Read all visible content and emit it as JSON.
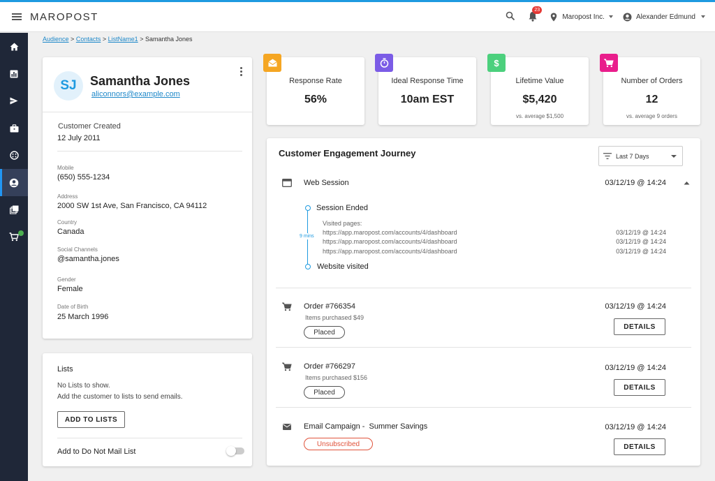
{
  "header": {
    "logo": "MAROPOST",
    "notification_count": "23",
    "org": "Maropost Inc.",
    "user": "Alexander Edmund"
  },
  "sidebar": {
    "items": [
      "home-icon",
      "analytics-icon",
      "send-icon",
      "briefcase-icon",
      "segments-icon",
      "contacts-icon",
      "content-icon",
      "cart-icon"
    ],
    "active": "contacts-icon"
  },
  "breadcrumb": {
    "audience": "Audience",
    "contacts": "Contacts",
    "list": "ListName1",
    "current": "Samantha Jones",
    "sep": ">"
  },
  "profile": {
    "initials": "SJ",
    "name": "Samantha Jones",
    "email": "aliconnors@example.com",
    "created_label": "Customer Created",
    "created_value": "12 July 2011",
    "fields": [
      {
        "label": "Mobile",
        "value": "(650) 555-1234"
      },
      {
        "label": "Address",
        "value": "2000 SW 1st Ave, San Francisco, CA 94112"
      },
      {
        "label": "Country",
        "value": "Canada"
      },
      {
        "label": "Social Channels",
        "value": "@samantha.jones"
      },
      {
        "label": "Gender",
        "value": "Female"
      },
      {
        "label": "Date of Birth",
        "value": "25 March 1996"
      }
    ]
  },
  "lists": {
    "title": "Lists",
    "empty": "No Lists to show.",
    "hint": "Add the customer to lists to send emails.",
    "add_button": "ADD TO LISTS",
    "dnm_label": "Add to Do Not Mail List",
    "dnm_enabled": false
  },
  "kpis": [
    {
      "label": "Response Rate",
      "value": "56%",
      "sub": "",
      "icon": "mail-open-icon",
      "color": "#f5a623"
    },
    {
      "label": "Ideal Response Time",
      "value": "10am EST",
      "sub": "",
      "icon": "stopwatch-icon",
      "color": "#7b5ce6"
    },
    {
      "label": "Lifetime Value",
      "value": "$5,420",
      "sub": "vs. average $1,500",
      "icon": "dollar-icon",
      "color": "#4cd07d"
    },
    {
      "label": "Number of Orders",
      "value": "12",
      "sub": "vs. average 9 orders",
      "icon": "cart-icon",
      "color": "#e91e8c"
    }
  ],
  "journey": {
    "title": "Customer Engagement Journey",
    "filter": "Last 7 Days",
    "web_session": {
      "label": "Web Session",
      "date": "03/12/19 @ 14:24",
      "ended": "Session Ended",
      "duration": "9 mins",
      "visited_label": "Visited pages:",
      "pages": [
        {
          "url": "https://app.maropost.com/accounts/4/dashboard",
          "date": "03/12/19 @ 14:24"
        },
        {
          "url": "https://app.maropost.com/accounts/4/dashboard",
          "date": "03/12/19 @ 14:24"
        },
        {
          "url": "https://app.maropost.com/accounts/4/dashboard",
          "date": "03/12/19 @ 14:24"
        }
      ],
      "visited": "Website visited"
    },
    "orders": [
      {
        "label": "Order #766354",
        "sub": "Items purchased $49",
        "date": "03/12/19 @ 14:24",
        "status": "Placed",
        "button": "DETAILS"
      },
      {
        "label": "Order #766297",
        "sub": "Items purchased $156",
        "date": "03/12/19 @ 14:24",
        "status": "Placed",
        "button": "DETAILS"
      }
    ],
    "email": {
      "label": "Email Campaign -  Summer Savings",
      "date": "03/12/19 @ 14:24",
      "status": "Unsubscribed",
      "button": "DETAILS"
    }
  }
}
